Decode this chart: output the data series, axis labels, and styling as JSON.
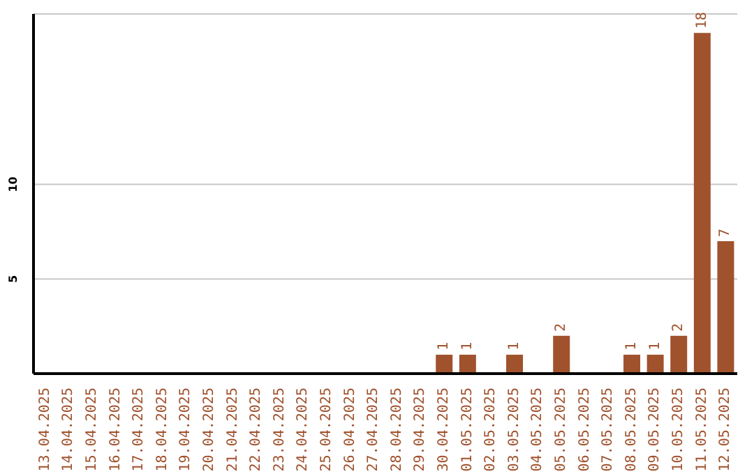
{
  "chart_data": {
    "type": "bar",
    "categories": [
      "13.04.2025",
      "14.04.2025",
      "15.04.2025",
      "16.04.2025",
      "17.04.2025",
      "18.04.2025",
      "19.04.2025",
      "20.04.2025",
      "21.04.2025",
      "22.04.2025",
      "23.04.2025",
      "24.04.2025",
      "25.04.2025",
      "26.04.2025",
      "27.04.2025",
      "28.04.2025",
      "29.04.2025",
      "30.04.2025",
      "01.05.2025",
      "02.05.2025",
      "03.05.2025",
      "04.05.2025",
      "05.05.2025",
      "06.05.2025",
      "07.05.2025",
      "08.05.2025",
      "09.05.2025",
      "10.05.2025",
      "11.05.2025",
      "12.05.2025"
    ],
    "values": [
      0,
      0,
      0,
      0,
      0,
      0,
      0,
      0,
      0,
      0,
      0,
      0,
      0,
      0,
      0,
      0,
      0,
      1,
      1,
      0,
      1,
      0,
      2,
      0,
      0,
      1,
      1,
      2,
      18,
      7
    ],
    "value_labels": [
      null,
      null,
      null,
      null,
      null,
      null,
      null,
      null,
      null,
      null,
      null,
      null,
      null,
      null,
      null,
      null,
      null,
      "1",
      "1",
      null,
      "1",
      null,
      "2",
      null,
      null,
      "1",
      "1",
      "2",
      "18",
      "7"
    ],
    "color": "#a0522d",
    "ylim": [
      0,
      19
    ],
    "yticks": [
      5,
      10
    ],
    "grid": "y"
  }
}
